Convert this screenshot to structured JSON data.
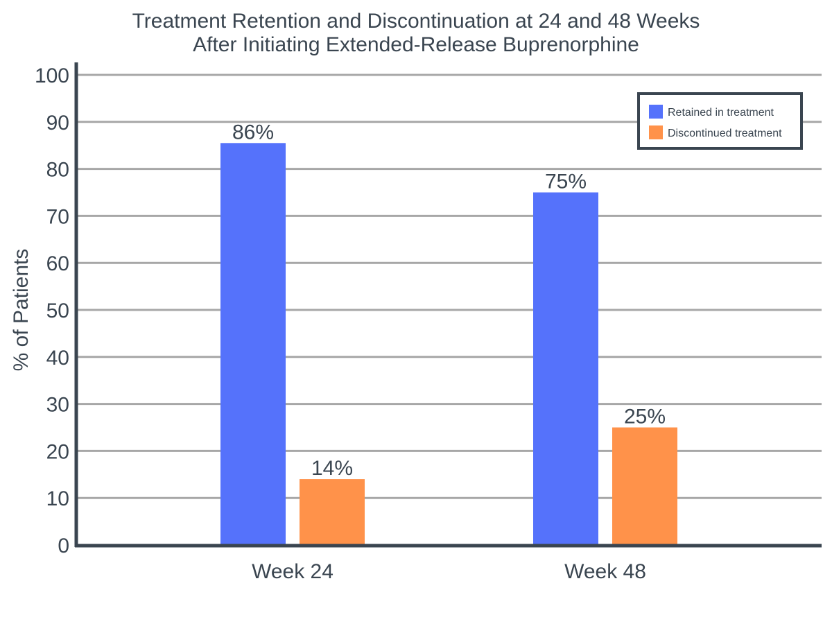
{
  "chart_data": {
    "type": "bar",
    "title_lines": [
      "Treatment Retention and Discontinuation at 24 and 48 Weeks",
      "After Initiating Extended-Release Buprenorphine"
    ],
    "xlabel": "",
    "ylabel": "% of Patients",
    "ylim": [
      0,
      100
    ],
    "yticks": [
      0,
      10,
      20,
      30,
      40,
      50,
      60,
      70,
      80,
      90,
      100
    ],
    "categories": [
      "Week 24",
      "Week 48"
    ],
    "series": [
      {
        "name": "Retained in treatment",
        "color": "#5572fb",
        "values": [
          85.5,
          75
        ],
        "labels": [
          "86%",
          "75%"
        ]
      },
      {
        "name": "Discontinued treatment",
        "color": "#ff924a",
        "values": [
          14,
          25
        ],
        "labels": [
          "14%",
          "25%"
        ]
      }
    ],
    "grid": true,
    "legend_position": "top-right"
  }
}
